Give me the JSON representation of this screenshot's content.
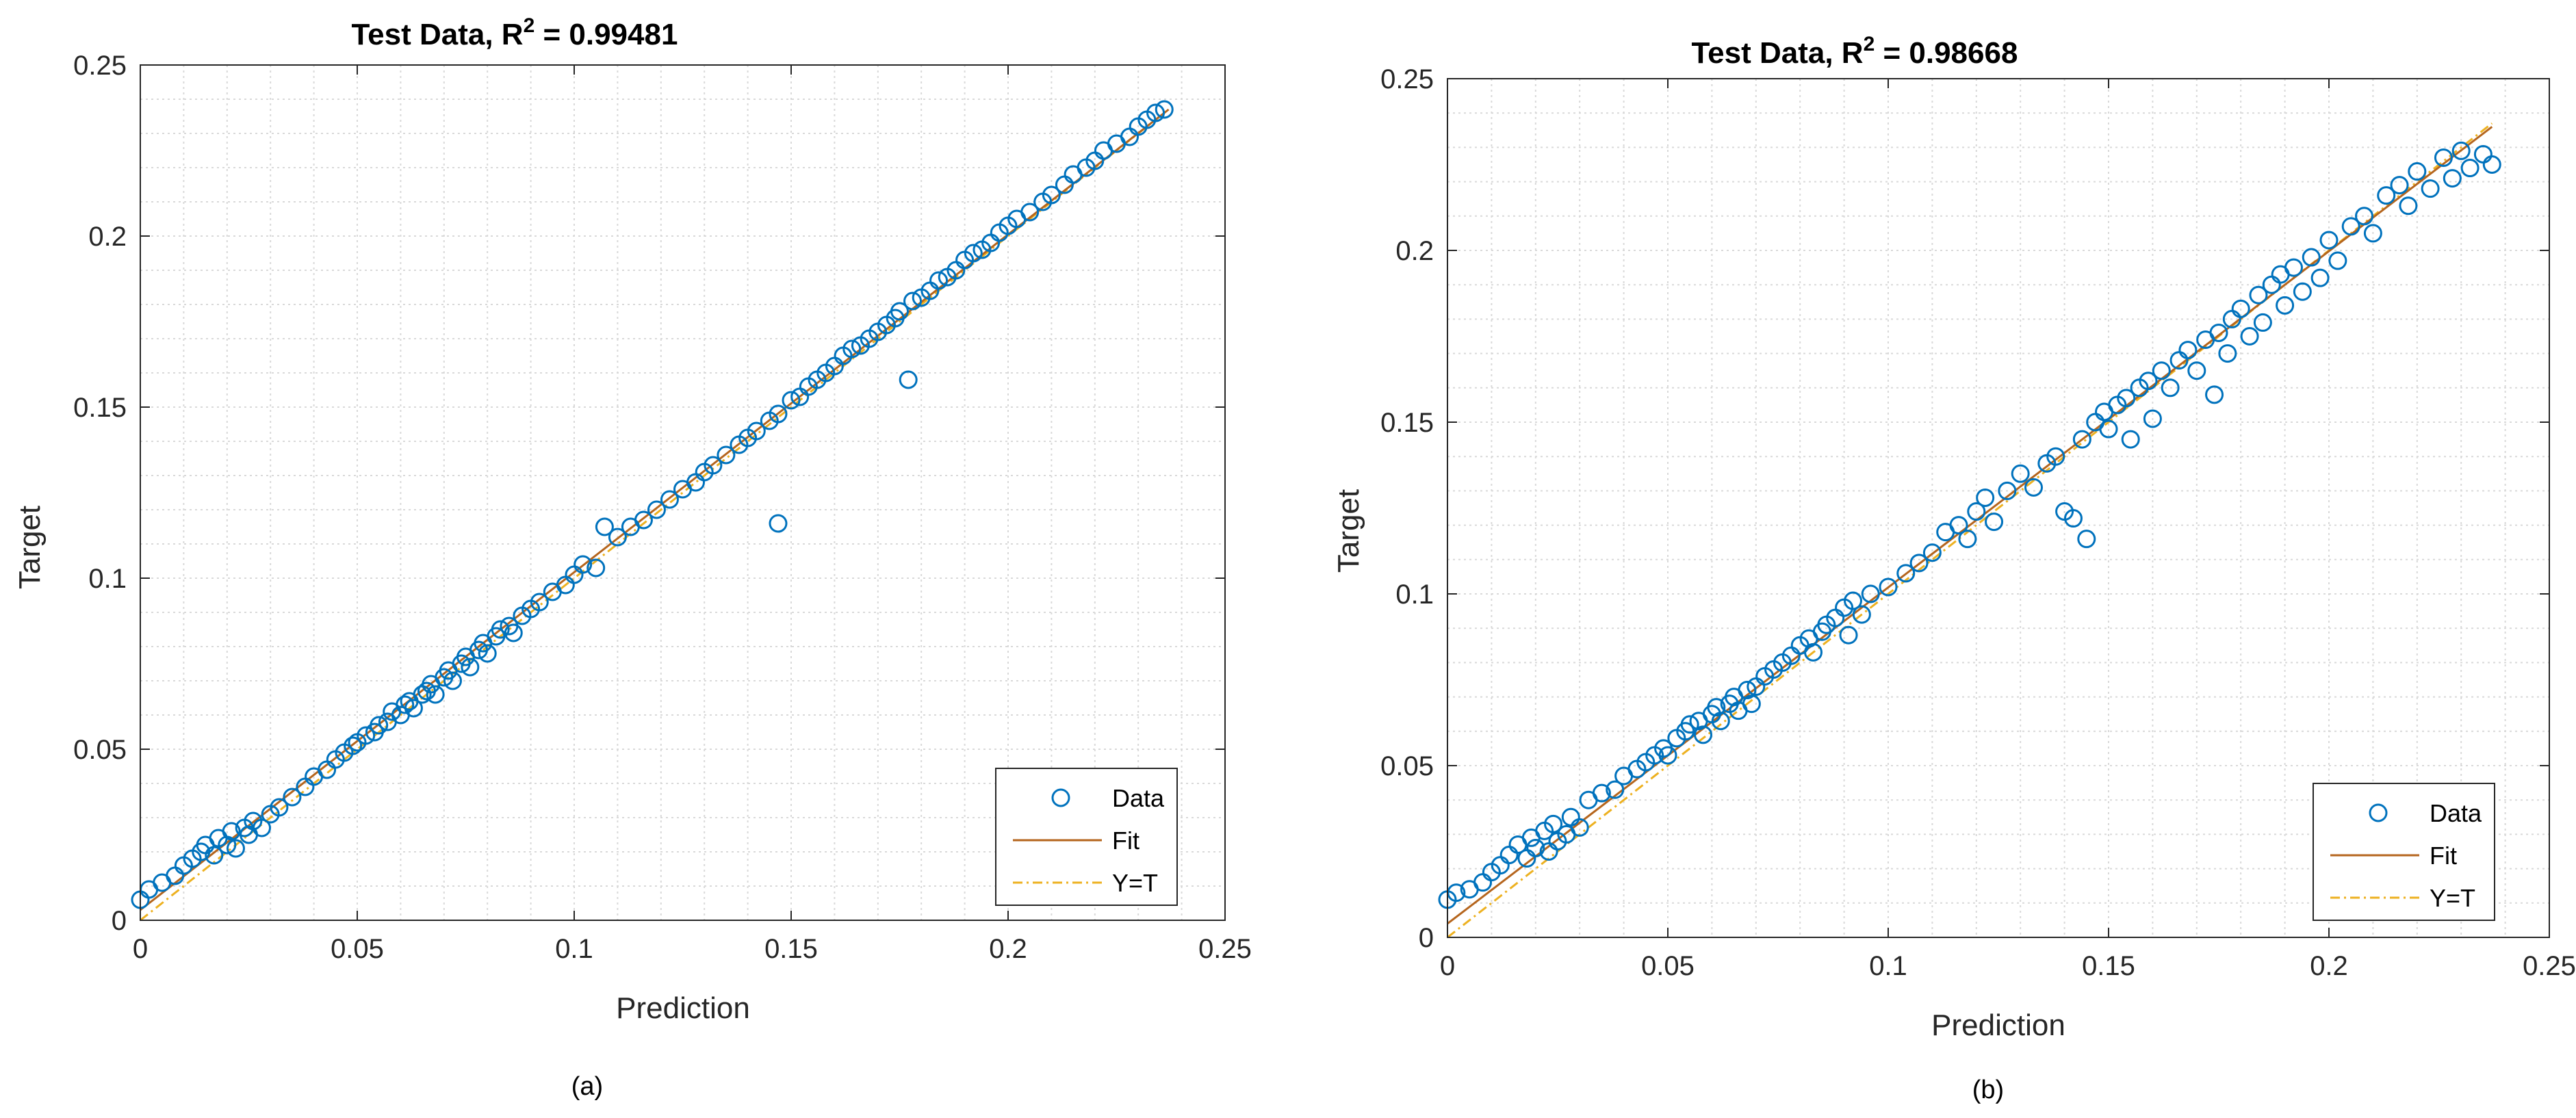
{
  "colors": {
    "data_marker": "#0072BD",
    "fit_line": "#B5651D",
    "identity_line": "#EDB120",
    "grid": "#d9d9d9",
    "axis": "#262626"
  },
  "chart_data": [
    {
      "type": "scatter",
      "caption": "(a)",
      "title": "Test Data, R",
      "title_sup": "2",
      "title_value": " = 0.99481",
      "xlabel": "Prediction",
      "ylabel": "Target",
      "xlim": [
        0,
        0.25
      ],
      "ylim": [
        0,
        0.25
      ],
      "xticks": [
        0,
        0.05,
        0.1,
        0.15,
        0.2,
        0.25
      ],
      "yticks": [
        0,
        0.05,
        0.1,
        0.15,
        0.2,
        0.25
      ],
      "xtick_labels": [
        "0",
        "0.05",
        "0.1",
        "0.15",
        "0.2",
        "0.25"
      ],
      "ytick_labels": [
        "0",
        "0.05",
        "0.1",
        "0.15",
        "0.2",
        "0.25"
      ],
      "grid": true,
      "legend_position": "bottom-right",
      "legend": [
        "Data",
        "Fit",
        "Y=T"
      ],
      "fit_line": {
        "x": [
          0,
          0.237
        ],
        "y": [
          0.003,
          0.237
        ]
      },
      "identity_line": {
        "x": [
          0,
          0.237
        ],
        "y": [
          0,
          0.237
        ]
      },
      "points": [
        [
          0.0,
          0.006
        ],
        [
          0.002,
          0.009
        ],
        [
          0.005,
          0.011
        ],
        [
          0.008,
          0.013
        ],
        [
          0.01,
          0.016
        ],
        [
          0.012,
          0.018
        ],
        [
          0.014,
          0.02
        ],
        [
          0.015,
          0.022
        ],
        [
          0.017,
          0.019
        ],
        [
          0.018,
          0.024
        ],
        [
          0.02,
          0.022
        ],
        [
          0.021,
          0.026
        ],
        [
          0.022,
          0.021
        ],
        [
          0.024,
          0.027
        ],
        [
          0.025,
          0.025
        ],
        [
          0.026,
          0.029
        ],
        [
          0.028,
          0.027
        ],
        [
          0.03,
          0.031
        ],
        [
          0.032,
          0.033
        ],
        [
          0.035,
          0.036
        ],
        [
          0.038,
          0.039
        ],
        [
          0.04,
          0.042
        ],
        [
          0.043,
          0.044
        ],
        [
          0.045,
          0.047
        ],
        [
          0.047,
          0.049
        ],
        [
          0.049,
          0.051
        ],
        [
          0.05,
          0.052
        ],
        [
          0.052,
          0.054
        ],
        [
          0.054,
          0.055
        ],
        [
          0.055,
          0.057
        ],
        [
          0.057,
          0.058
        ],
        [
          0.058,
          0.061
        ],
        [
          0.06,
          0.06
        ],
        [
          0.061,
          0.063
        ],
        [
          0.062,
          0.064
        ],
        [
          0.063,
          0.062
        ],
        [
          0.065,
          0.066
        ],
        [
          0.066,
          0.067
        ],
        [
          0.067,
          0.069
        ],
        [
          0.068,
          0.066
        ],
        [
          0.07,
          0.071
        ],
        [
          0.071,
          0.073
        ],
        [
          0.072,
          0.07
        ],
        [
          0.074,
          0.075
        ],
        [
          0.075,
          0.077
        ],
        [
          0.076,
          0.074
        ],
        [
          0.078,
          0.079
        ],
        [
          0.079,
          0.081
        ],
        [
          0.08,
          0.078
        ],
        [
          0.082,
          0.083
        ],
        [
          0.083,
          0.085
        ],
        [
          0.085,
          0.086
        ],
        [
          0.086,
          0.084
        ],
        [
          0.088,
          0.089
        ],
        [
          0.09,
          0.091
        ],
        [
          0.092,
          0.093
        ],
        [
          0.095,
          0.096
        ],
        [
          0.098,
          0.098
        ],
        [
          0.1,
          0.101
        ],
        [
          0.102,
          0.104
        ],
        [
          0.105,
          0.103
        ],
        [
          0.107,
          0.115
        ],
        [
          0.11,
          0.112
        ],
        [
          0.113,
          0.115
        ],
        [
          0.116,
          0.117
        ],
        [
          0.119,
          0.12
        ],
        [
          0.122,
          0.123
        ],
        [
          0.125,
          0.126
        ],
        [
          0.128,
          0.128
        ],
        [
          0.13,
          0.131
        ],
        [
          0.132,
          0.133
        ],
        [
          0.135,
          0.136
        ],
        [
          0.138,
          0.139
        ],
        [
          0.14,
          0.141
        ],
        [
          0.142,
          0.143
        ],
        [
          0.145,
          0.146
        ],
        [
          0.147,
          0.148
        ],
        [
          0.147,
          0.116
        ],
        [
          0.15,
          0.152
        ],
        [
          0.152,
          0.153
        ],
        [
          0.154,
          0.156
        ],
        [
          0.156,
          0.158
        ],
        [
          0.158,
          0.16
        ],
        [
          0.16,
          0.162
        ],
        [
          0.162,
          0.165
        ],
        [
          0.164,
          0.167
        ],
        [
          0.166,
          0.168
        ],
        [
          0.168,
          0.17
        ],
        [
          0.17,
          0.172
        ],
        [
          0.172,
          0.174
        ],
        [
          0.174,
          0.176
        ],
        [
          0.175,
          0.178
        ],
        [
          0.177,
          0.158
        ],
        [
          0.178,
          0.181
        ],
        [
          0.18,
          0.182
        ],
        [
          0.182,
          0.184
        ],
        [
          0.184,
          0.187
        ],
        [
          0.186,
          0.188
        ],
        [
          0.188,
          0.19
        ],
        [
          0.19,
          0.193
        ],
        [
          0.192,
          0.195
        ],
        [
          0.194,
          0.196
        ],
        [
          0.196,
          0.198
        ],
        [
          0.198,
          0.201
        ],
        [
          0.2,
          0.203
        ],
        [
          0.202,
          0.205
        ],
        [
          0.205,
          0.207
        ],
        [
          0.208,
          0.21
        ],
        [
          0.21,
          0.212
        ],
        [
          0.213,
          0.215
        ],
        [
          0.215,
          0.218
        ],
        [
          0.218,
          0.22
        ],
        [
          0.22,
          0.222
        ],
        [
          0.222,
          0.225
        ],
        [
          0.225,
          0.227
        ],
        [
          0.228,
          0.229
        ],
        [
          0.23,
          0.232
        ],
        [
          0.232,
          0.234
        ],
        [
          0.234,
          0.236
        ],
        [
          0.236,
          0.237
        ]
      ]
    },
    {
      "type": "scatter",
      "caption": "(b)",
      "title": "Test Data, R",
      "title_sup": "2",
      "title_value": " = 0.98668",
      "xlabel": "Prediction",
      "ylabel": "Target",
      "xlim": [
        0,
        0.25
      ],
      "ylim": [
        0,
        0.25
      ],
      "xticks": [
        0,
        0.05,
        0.1,
        0.15,
        0.2,
        0.25
      ],
      "yticks": [
        0,
        0.05,
        0.1,
        0.15,
        0.2,
        0.25
      ],
      "xtick_labels": [
        "0",
        "0.05",
        "0.1",
        "0.15",
        "0.2",
        "0.25"
      ],
      "ytick_labels": [
        "0",
        "0.05",
        "0.1",
        "0.15",
        "0.2",
        "0.25"
      ],
      "grid": true,
      "legend_position": "bottom-right",
      "legend": [
        "Data",
        "Fit",
        "Y=T"
      ],
      "fit_line": {
        "x": [
          0,
          0.237
        ],
        "y": [
          0.004,
          0.236
        ]
      },
      "identity_line": {
        "x": [
          0,
          0.237
        ],
        "y": [
          0,
          0.237
        ]
      },
      "points": [
        [
          0.0,
          0.011
        ],
        [
          0.002,
          0.013
        ],
        [
          0.005,
          0.014
        ],
        [
          0.008,
          0.016
        ],
        [
          0.01,
          0.019
        ],
        [
          0.012,
          0.021
        ],
        [
          0.014,
          0.024
        ],
        [
          0.016,
          0.027
        ],
        [
          0.018,
          0.023
        ],
        [
          0.019,
          0.029
        ],
        [
          0.02,
          0.026
        ],
        [
          0.022,
          0.031
        ],
        [
          0.023,
          0.025
        ],
        [
          0.024,
          0.033
        ],
        [
          0.025,
          0.028
        ],
        [
          0.027,
          0.03
        ],
        [
          0.028,
          0.035
        ],
        [
          0.03,
          0.032
        ],
        [
          0.032,
          0.04
        ],
        [
          0.035,
          0.042
        ],
        [
          0.038,
          0.043
        ],
        [
          0.04,
          0.047
        ],
        [
          0.043,
          0.049
        ],
        [
          0.045,
          0.051
        ],
        [
          0.047,
          0.053
        ],
        [
          0.049,
          0.055
        ],
        [
          0.05,
          0.053
        ],
        [
          0.052,
          0.058
        ],
        [
          0.054,
          0.06
        ],
        [
          0.055,
          0.062
        ],
        [
          0.057,
          0.063
        ],
        [
          0.058,
          0.059
        ],
        [
          0.06,
          0.065
        ],
        [
          0.061,
          0.067
        ],
        [
          0.062,
          0.063
        ],
        [
          0.064,
          0.068
        ],
        [
          0.065,
          0.07
        ],
        [
          0.066,
          0.066
        ],
        [
          0.068,
          0.072
        ],
        [
          0.069,
          0.068
        ],
        [
          0.07,
          0.073
        ],
        [
          0.072,
          0.076
        ],
        [
          0.074,
          0.078
        ],
        [
          0.076,
          0.08
        ],
        [
          0.078,
          0.082
        ],
        [
          0.08,
          0.085
        ],
        [
          0.082,
          0.087
        ],
        [
          0.083,
          0.083
        ],
        [
          0.085,
          0.089
        ],
        [
          0.086,
          0.091
        ],
        [
          0.088,
          0.093
        ],
        [
          0.09,
          0.096
        ],
        [
          0.091,
          0.088
        ],
        [
          0.092,
          0.098
        ],
        [
          0.094,
          0.094
        ],
        [
          0.096,
          0.1
        ],
        [
          0.1,
          0.102
        ],
        [
          0.104,
          0.106
        ],
        [
          0.107,
          0.109
        ],
        [
          0.11,
          0.112
        ],
        [
          0.113,
          0.118
        ],
        [
          0.116,
          0.12
        ],
        [
          0.118,
          0.116
        ],
        [
          0.12,
          0.124
        ],
        [
          0.122,
          0.128
        ],
        [
          0.124,
          0.121
        ],
        [
          0.127,
          0.13
        ],
        [
          0.13,
          0.135
        ],
        [
          0.133,
          0.131
        ],
        [
          0.136,
          0.138
        ],
        [
          0.138,
          0.14
        ],
        [
          0.14,
          0.124
        ],
        [
          0.142,
          0.122
        ],
        [
          0.144,
          0.145
        ],
        [
          0.145,
          0.116
        ],
        [
          0.147,
          0.15
        ],
        [
          0.149,
          0.153
        ],
        [
          0.15,
          0.148
        ],
        [
          0.152,
          0.155
        ],
        [
          0.154,
          0.157
        ],
        [
          0.155,
          0.145
        ],
        [
          0.157,
          0.16
        ],
        [
          0.159,
          0.162
        ],
        [
          0.16,
          0.151
        ],
        [
          0.162,
          0.165
        ],
        [
          0.164,
          0.16
        ],
        [
          0.166,
          0.168
        ],
        [
          0.168,
          0.171
        ],
        [
          0.17,
          0.165
        ],
        [
          0.172,
          0.174
        ],
        [
          0.174,
          0.158
        ],
        [
          0.175,
          0.176
        ],
        [
          0.177,
          0.17
        ],
        [
          0.178,
          0.18
        ],
        [
          0.18,
          0.183
        ],
        [
          0.182,
          0.175
        ],
        [
          0.184,
          0.187
        ],
        [
          0.185,
          0.179
        ],
        [
          0.187,
          0.19
        ],
        [
          0.189,
          0.193
        ],
        [
          0.19,
          0.184
        ],
        [
          0.192,
          0.195
        ],
        [
          0.194,
          0.188
        ],
        [
          0.196,
          0.198
        ],
        [
          0.198,
          0.192
        ],
        [
          0.2,
          0.203
        ],
        [
          0.202,
          0.197
        ],
        [
          0.205,
          0.207
        ],
        [
          0.208,
          0.21
        ],
        [
          0.21,
          0.205
        ],
        [
          0.213,
          0.216
        ],
        [
          0.216,
          0.219
        ],
        [
          0.218,
          0.213
        ],
        [
          0.22,
          0.223
        ],
        [
          0.223,
          0.218
        ],
        [
          0.226,
          0.227
        ],
        [
          0.228,
          0.221
        ],
        [
          0.23,
          0.229
        ],
        [
          0.232,
          0.224
        ],
        [
          0.235,
          0.228
        ],
        [
          0.237,
          0.225
        ]
      ]
    }
  ]
}
